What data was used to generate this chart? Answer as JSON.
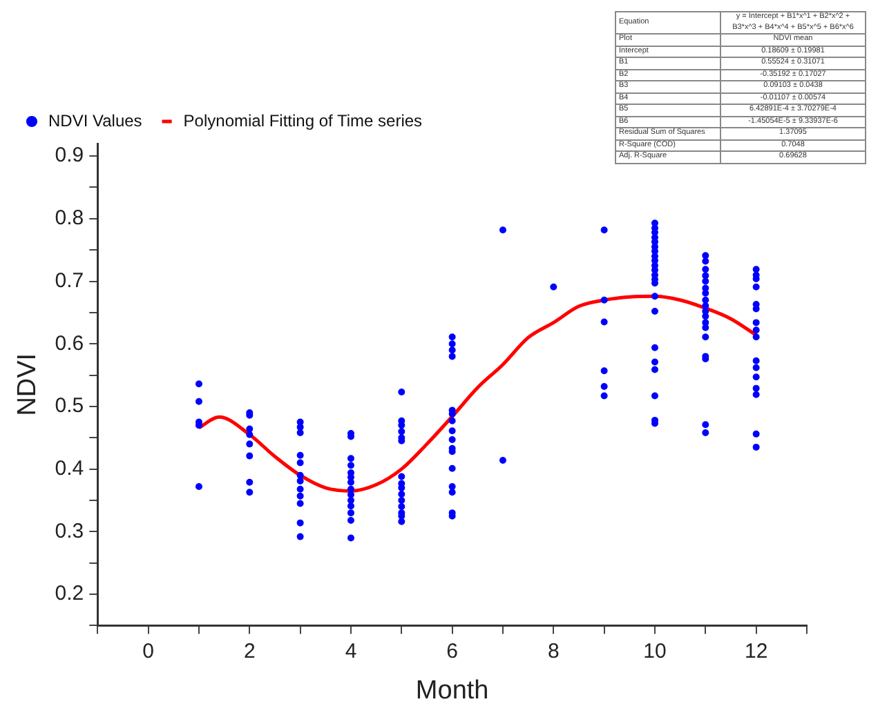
{
  "chart_data": {
    "type": "scatter",
    "xlabel": "Month",
    "ylabel": "NDVI",
    "legend": "top left",
    "grid": false,
    "xlim": [
      -1,
      13
    ],
    "xticks": [
      {
        "value": -1,
        "label": null
      },
      0,
      {
        "value": 1,
        "label": null
      },
      2,
      {
        "value": 3,
        "label": null
      },
      4,
      {
        "value": 5,
        "label": null
      },
      6,
      {
        "value": 7,
        "label": null
      },
      8,
      {
        "value": 9,
        "label": null
      },
      10,
      {
        "value": 11,
        "label": null
      },
      12,
      {
        "value": 13,
        "label": null
      }
    ],
    "ylim": [
      0.15,
      0.92
    ],
    "yticks": [
      {
        "value": 0.15,
        "label": null
      },
      0.2,
      {
        "value": 0.25,
        "label": null
      },
      0.3,
      {
        "value": 0.35,
        "label": null
      },
      0.4,
      {
        "value": 0.45,
        "label": null
      },
      0.5,
      {
        "value": 0.55,
        "label": null
      },
      0.6,
      {
        "value": 0.65,
        "label": null
      },
      0.7,
      {
        "value": 0.75,
        "label": null
      },
      0.8,
      {
        "value": 0.85,
        "label": null
      },
      0.9
    ],
    "series": [
      {
        "name": "NDVI Values",
        "marker": "circle",
        "color": "#0000ff",
        "x": [
          1,
          1,
          1,
          1,
          1,
          2,
          2,
          2,
          2,
          2,
          2,
          2,
          2,
          3,
          3,
          3,
          3,
          3,
          3,
          3,
          3,
          3,
          3,
          3,
          3,
          4,
          4,
          4,
          4,
          4,
          4,
          4,
          4,
          4,
          4,
          4,
          4,
          4,
          4,
          5,
          5,
          5,
          5,
          5,
          5,
          5,
          5,
          5,
          5,
          5,
          5,
          5,
          5,
          5,
          6,
          6,
          6,
          6,
          6,
          6,
          6,
          6,
          6,
          6,
          6,
          6,
          6,
          6,
          6,
          6,
          7,
          7,
          8,
          9,
          9,
          9,
          9,
          9,
          9,
          10,
          10,
          10,
          10,
          10,
          10,
          10,
          10,
          10,
          10,
          10,
          10,
          10,
          10,
          10,
          10,
          10,
          10,
          10,
          10,
          10,
          10,
          11,
          11,
          11,
          11,
          11,
          11,
          11,
          11,
          11,
          11,
          11,
          11,
          11,
          11,
          11,
          11,
          11,
          11,
          12,
          12,
          12,
          12,
          12,
          12,
          12,
          12,
          12,
          12,
          12,
          12,
          12,
          12,
          12,
          12
        ],
        "values": [
          0.536,
          0.508,
          0.475,
          0.47,
          0.372,
          0.49,
          0.486,
          0.464,
          0.455,
          0.44,
          0.421,
          0.379,
          0.363,
          0.475,
          0.467,
          0.458,
          0.422,
          0.41,
          0.39,
          0.381,
          0.368,
          0.357,
          0.345,
          0.314,
          0.292,
          0.457,
          0.452,
          0.417,
          0.406,
          0.394,
          0.387,
          0.379,
          0.368,
          0.359,
          0.35,
          0.341,
          0.33,
          0.318,
          0.29,
          0.523,
          0.477,
          0.47,
          0.46,
          0.45,
          0.445,
          0.388,
          0.377,
          0.37,
          0.36,
          0.35,
          0.34,
          0.33,
          0.325,
          0.316,
          0.611,
          0.6,
          0.59,
          0.58,
          0.494,
          0.488,
          0.477,
          0.461,
          0.447,
          0.433,
          0.428,
          0.401,
          0.372,
          0.363,
          0.33,
          0.325,
          0.782,
          0.414,
          0.691,
          0.782,
          0.67,
          0.635,
          0.557,
          0.532,
          0.517,
          0.793,
          0.785,
          0.778,
          0.77,
          0.763,
          0.755,
          0.748,
          0.74,
          0.733,
          0.725,
          0.718,
          0.71,
          0.703,
          0.697,
          0.676,
          0.652,
          0.594,
          0.571,
          0.559,
          0.517,
          0.478,
          0.473,
          0.741,
          0.732,
          0.719,
          0.709,
          0.7,
          0.689,
          0.681,
          0.67,
          0.661,
          0.652,
          0.644,
          0.634,
          0.626,
          0.611,
          0.58,
          0.576,
          0.471,
          0.458,
          0.719,
          0.71,
          0.704,
          0.691,
          0.663,
          0.656,
          0.634,
          0.622,
          0.611,
          0.573,
          0.562,
          0.547,
          0.529,
          0.519,
          0.456,
          0.435
        ]
      },
      {
        "name": "Polynomial Fitting of Time series",
        "type": "line",
        "marker": "none",
        "color": "#ff0000",
        "x": [
          1,
          1.4,
          2,
          2.5,
          3,
          3.5,
          4,
          4.5,
          5,
          5.5,
          6,
          6.5,
          7,
          7.5,
          8,
          8.5,
          9,
          9.5,
          10,
          10.5,
          11,
          11.5,
          12
        ],
        "values": [
          0.466,
          0.483,
          0.455,
          0.42,
          0.39,
          0.37,
          0.365,
          0.375,
          0.4,
          0.44,
          0.484,
          0.53,
          0.567,
          0.61,
          0.634,
          0.66,
          0.67,
          0.675,
          0.676,
          0.67,
          0.657,
          0.64,
          0.614
        ]
      }
    ],
    "annotations": [
      "Equation",
      "y = Intercept + B1*x^1 + B2*x^2 + B3*x^3 + B4*x^4 + B5*x^5 + B6*x^6",
      "Plot",
      "NDVI mean",
      "Intercept",
      "0.18609 ± 0.19981",
      "B1",
      "0.55524 ± 0.31071",
      "B2",
      "-0.35192 ± 0.17027",
      "B3",
      "0.09103 ± 0.0438",
      "B4",
      "-0.01107 ± 0.00574",
      "B5",
      "6.42891E-4 ± 3.70279E-4",
      "B6",
      "-1.45054E-5 ± 9.33937E-6",
      "Residual Sum of Squares",
      "1.37095",
      "R-Square (COD)",
      "0.7048",
      "Adj. R-Square",
      "0.69628"
    ]
  }
}
